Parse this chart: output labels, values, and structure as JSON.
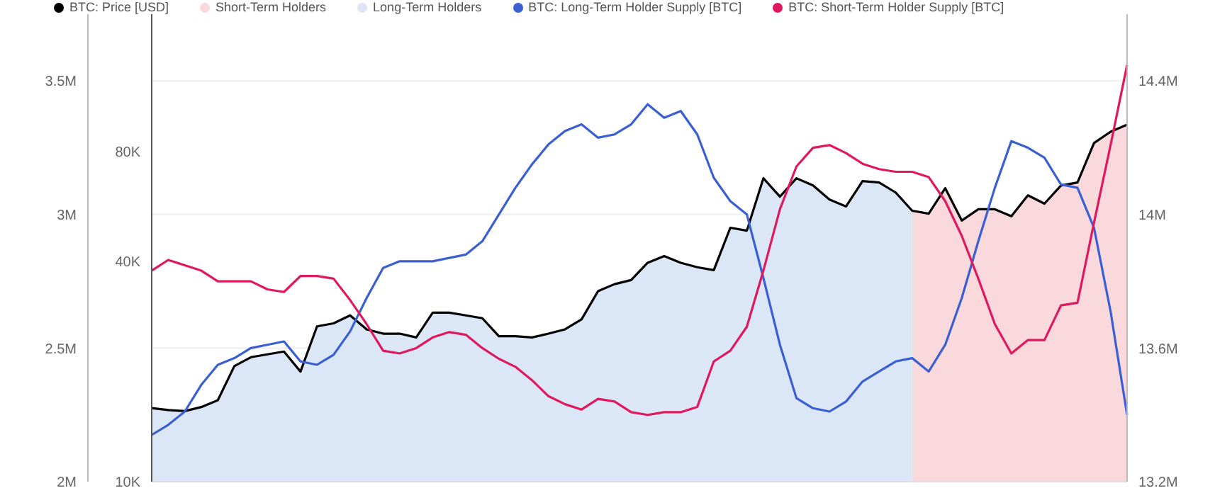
{
  "chart_data": {
    "type": "line",
    "categories": [
      null,
      null,
      null,
      null,
      null,
      null,
      null,
      null,
      null,
      null,
      null,
      null,
      null,
      null,
      null,
      null,
      null,
      null,
      null,
      null,
      null,
      null,
      null,
      null,
      null,
      null,
      null,
      null,
      null,
      null,
      null,
      null,
      null,
      null,
      null,
      null,
      null,
      null,
      null,
      null,
      null,
      null,
      null,
      null,
      null,
      null,
      null,
      null,
      null,
      null,
      null,
      null,
      null,
      null,
      null,
      null,
      null,
      null,
      null,
      null
    ],
    "series": [
      {
        "name": "BTC: Price [USD]",
        "axis": "y",
        "color": "#000000",
        "values": [
          15900,
          15700,
          15600,
          16000,
          16700,
          20700,
          21900,
          22300,
          22700,
          20000,
          26600,
          27100,
          28500,
          26100,
          25400,
          25400,
          24800,
          29000,
          29000,
          28500,
          28000,
          25000,
          25000,
          24800,
          25400,
          26100,
          27800,
          33200,
          34700,
          35600,
          39700,
          41400,
          39700,
          38600,
          37900,
          49500,
          48600,
          67600,
          60200,
          67600,
          64600,
          59100,
          56600,
          66400,
          65800,
          61800,
          55100,
          54100,
          63500,
          51800,
          55600,
          55600,
          53200,
          60700,
          57600,
          64600,
          65800,
          84400,
          90600,
          94700
        ]
      },
      {
        "name": "Short-Term Holders",
        "type": "area",
        "axis": "y",
        "color": "#f9d9dc",
        "values": [
          null,
          null,
          null,
          null,
          null,
          null,
          null,
          null,
          null,
          null,
          null,
          null,
          null,
          null,
          null,
          null,
          null,
          null,
          null,
          null,
          null,
          null,
          null,
          null,
          null,
          null,
          null,
          null,
          null,
          null,
          null,
          null,
          null,
          null,
          null,
          null,
          null,
          null,
          null,
          null,
          null,
          null,
          null,
          null,
          null,
          null,
          55100,
          54100,
          63500,
          51800,
          55600,
          55600,
          53200,
          60700,
          57600,
          64600,
          65800,
          84400,
          90600,
          94700
        ]
      },
      {
        "name": "Long-Term Holders",
        "type": "area",
        "axis": "y",
        "color": "#dbe7f7",
        "values": [
          15900,
          15700,
          15600,
          16000,
          16700,
          20700,
          21900,
          22300,
          22700,
          20000,
          26600,
          27100,
          28500,
          26100,
          25400,
          25400,
          24800,
          29000,
          29000,
          28500,
          28000,
          25000,
          25000,
          24800,
          25400,
          26100,
          27800,
          33200,
          34700,
          35600,
          39700,
          41400,
          39700,
          38600,
          37900,
          49500,
          48600,
          67600,
          60200,
          67600,
          64600,
          59100,
          56600,
          66400,
          65800,
          61800,
          55100,
          null,
          null,
          null,
          null,
          null,
          null,
          null,
          null,
          null,
          null,
          null,
          null,
          null
        ]
      },
      {
        "name": "BTC: Long-Term Holder Supply [BTC]",
        "axis": "y3",
        "color": "#3a5fd4",
        "values": [
          13340000,
          13370000,
          13410000,
          13490000,
          13550000,
          13570000,
          13600000,
          13610000,
          13620000,
          13560000,
          13550000,
          13580000,
          13650000,
          13750000,
          13840000,
          13860000,
          13860000,
          13860000,
          13870000,
          13880000,
          13920000,
          14000000,
          14080000,
          14150000,
          14210000,
          14250000,
          14270000,
          14230000,
          14240000,
          14270000,
          14330000,
          14290000,
          14310000,
          14240000,
          14110000,
          14040000,
          14000000,
          13810000,
          13610000,
          13450000,
          13420000,
          13410000,
          13440000,
          13500000,
          13530000,
          13560000,
          13570000,
          13530000,
          13610000,
          13750000,
          13920000,
          14080000,
          14220000,
          14200000,
          14170000,
          14090000,
          14080000,
          13960000,
          13710000,
          13400000
        ]
      },
      {
        "name": "BTC: Short-Term Holder Supply [BTC]",
        "axis": "y2",
        "color": "#e0195e",
        "values": [
          2790000,
          2830000,
          2810000,
          2790000,
          2750000,
          2750000,
          2750000,
          2720000,
          2710000,
          2770000,
          2770000,
          2760000,
          2680000,
          2590000,
          2490000,
          2480000,
          2500000,
          2540000,
          2560000,
          2550000,
          2500000,
          2460000,
          2430000,
          2380000,
          2320000,
          2290000,
          2270000,
          2310000,
          2300000,
          2260000,
          2250000,
          2260000,
          2260000,
          2280000,
          2450000,
          2490000,
          2580000,
          2790000,
          3020000,
          3180000,
          3250000,
          3260000,
          3230000,
          3190000,
          3170000,
          3160000,
          3160000,
          3140000,
          3050000,
          2920000,
          2760000,
          2590000,
          2480000,
          2530000,
          2530000,
          2660000,
          2670000,
          2970000,
          3260000,
          3560000
        ]
      }
    ],
    "ylim": [
      10000,
      190000
    ],
    "yticks": [
      {
        "value": 10000,
        "label": "10K"
      },
      {
        "value": 40000,
        "label": "40K"
      },
      {
        "value": 80000,
        "label": "80K"
      }
    ],
    "y2lim": [
      2000000,
      3750000
    ],
    "y2ticks": [
      {
        "value": 2000000,
        "label": "2M"
      },
      {
        "value": 2500000,
        "label": "2.5M"
      },
      {
        "value": 3000000,
        "label": "3M"
      },
      {
        "value": 3500000,
        "label": "3.5M"
      }
    ],
    "y3lim": [
      13200000,
      14600000
    ],
    "y3ticks": [
      {
        "value": 13200000,
        "label": "13.2M"
      },
      {
        "value": 13600000,
        "label": "13.6M"
      },
      {
        "value": 14000000,
        "label": "14M"
      },
      {
        "value": 14400000,
        "label": "14.4M"
      }
    ],
    "log": "y",
    "grid": "y",
    "legend": "top left",
    "tick_labels": "y"
  }
}
